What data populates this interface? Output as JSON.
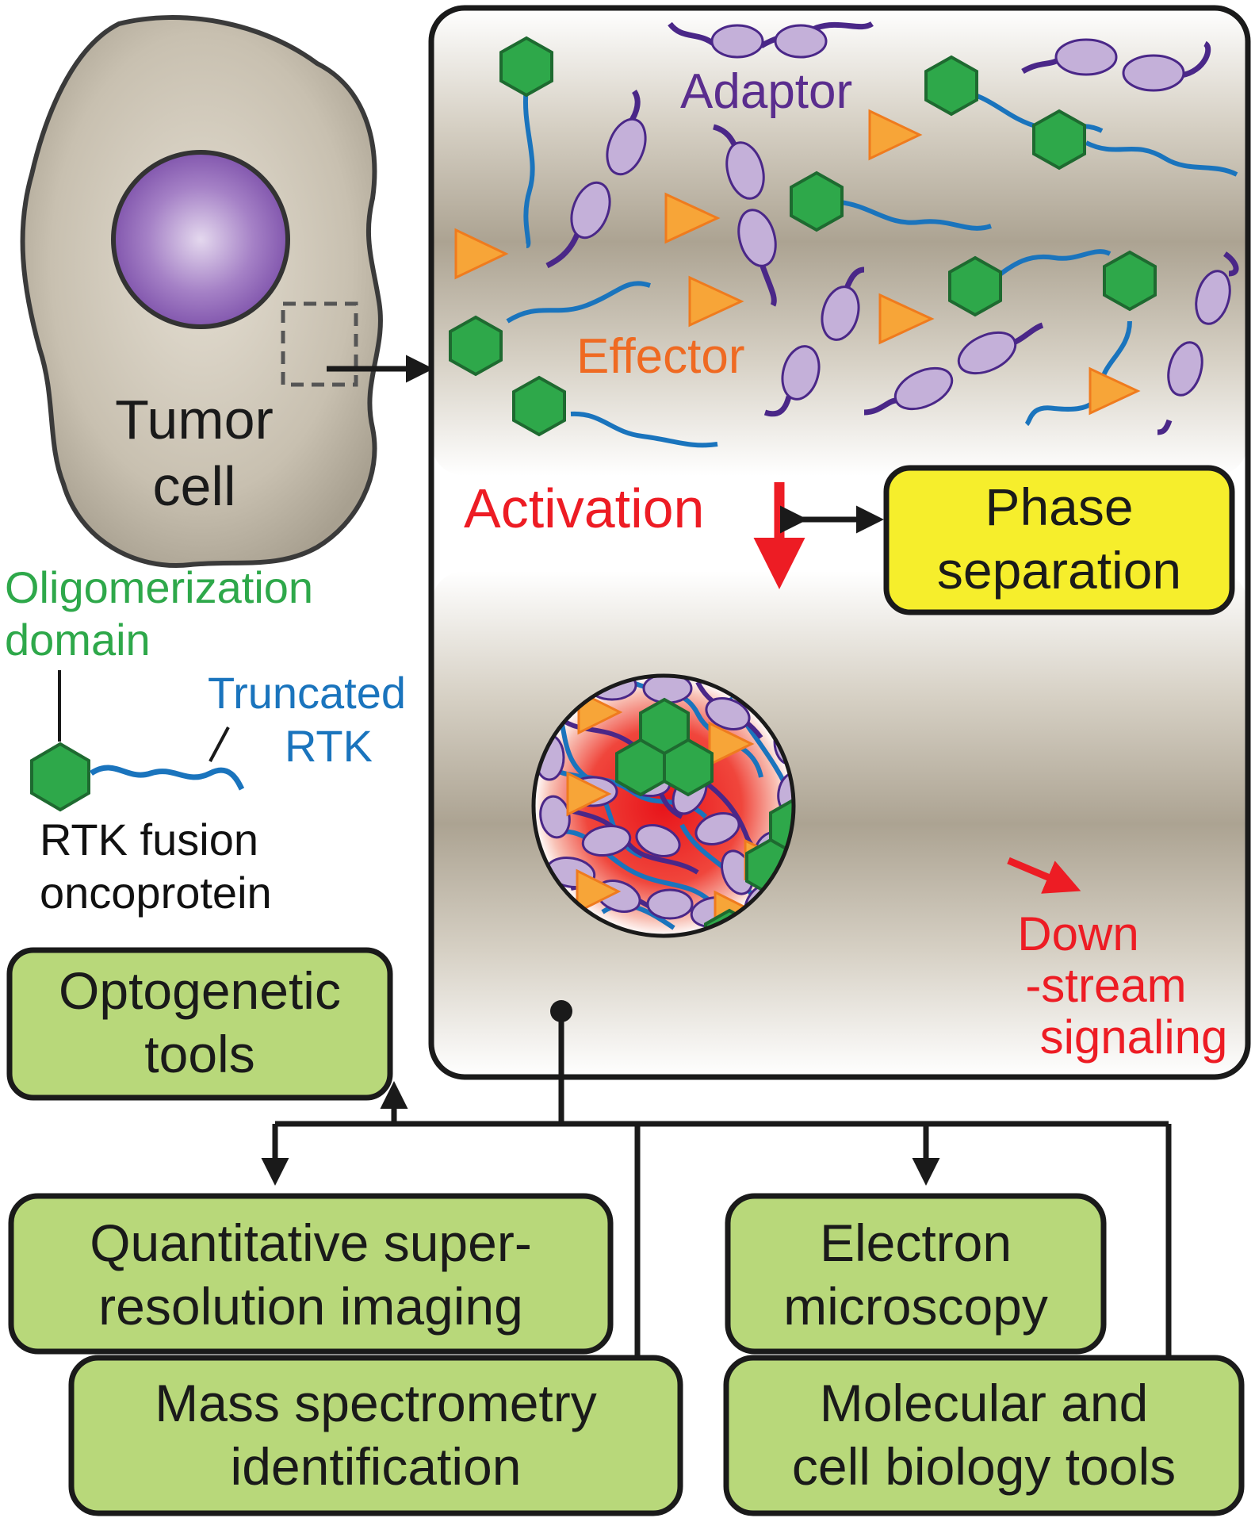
{
  "tumor_cell": {
    "line1": "Tumor",
    "line2": "cell"
  },
  "cytoplasm": {
    "adaptor_label": "Adaptor",
    "effector_label": "Effector",
    "activation_label": "Activation",
    "phase_separation": {
      "line1": "Phase",
      "line2": "separation"
    },
    "downstream": {
      "line1": "Down",
      "line2": "-stream",
      "line3": "signaling"
    }
  },
  "legend": {
    "oligomerization": {
      "line1": "Oligomerization",
      "line2": "domain"
    },
    "truncated_rtk": {
      "line1": "Truncated",
      "line2": "RTK"
    },
    "fusion": {
      "line1": "RTK fusion",
      "line2": "oncoprotein"
    }
  },
  "tools": {
    "optogenetic": {
      "line1": "Optogenetic",
      "line2": "tools"
    },
    "super_resolution": {
      "line1": "Quantitative super-",
      "line2": "resolution imaging"
    },
    "electron_microscopy": {
      "line1": "Electron",
      "line2": "microscopy"
    },
    "mass_spectrometry": {
      "line1": "Mass spectrometry",
      "line2": "identification"
    },
    "molecular_cell_biology": {
      "line1": "Molecular and",
      "line2": "cell biology tools"
    }
  },
  "colors": {
    "oligomer_green": "#2ea84a",
    "rtk_blue": "#1a74bd",
    "adaptor_purple": "#c4b0d9",
    "adaptor_linker": "#4a2788",
    "effector_orange": "#f7a538",
    "activation_red": "#ed1c24",
    "tool_box_green": "#b8d87a",
    "phase_box_yellow": "#f6ee2c",
    "cytoplasm_tan": "#b3ab9c",
    "nucleus_purple": "#8a5fb0"
  }
}
